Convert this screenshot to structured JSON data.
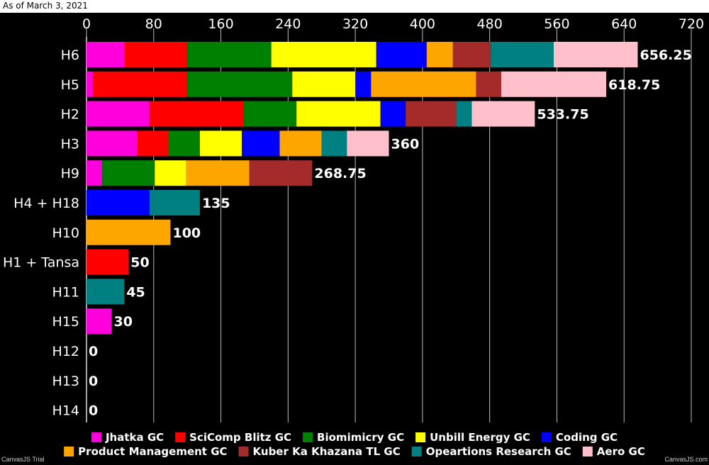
{
  "header": {
    "as_of": "As of March 3, 2021"
  },
  "watermarks": {
    "left": "CanvasJS Trial",
    "right": "CanvasJS.com"
  },
  "chart_data": {
    "type": "bar",
    "orientation": "horizontal",
    "stacked": true,
    "categories": [
      "H6",
      "H5",
      "H2",
      "H3",
      "H9",
      "H4 + H18",
      "H10",
      "H1 + Tansa",
      "H11",
      "H15",
      "H12",
      "H13",
      "H14"
    ],
    "series": [
      {
        "name": "Jhatka GC",
        "color": "#ff00dd",
        "values": [
          45,
          7.5,
          75,
          60,
          18.75,
          0,
          0,
          0,
          0,
          30,
          0,
          0,
          0
        ]
      },
      {
        "name": "SciComp Blitz GC",
        "color": "#ff0000",
        "values": [
          75,
          112.5,
          112.5,
          37.5,
          0,
          0,
          0,
          50,
          0,
          0,
          0,
          0,
          0
        ]
      },
      {
        "name": "Biomimicry GC",
        "color": "#008000",
        "values": [
          100,
          125,
          62.5,
          37.5,
          62.5,
          0,
          0,
          0,
          0,
          0,
          0,
          0,
          0
        ]
      },
      {
        "name": "Unbill Energy GC",
        "color": "#ffff00",
        "values": [
          125,
          75,
          100,
          50,
          37.5,
          0,
          0,
          0,
          0,
          0,
          0,
          0,
          0
        ]
      },
      {
        "name": "Coding GC",
        "color": "#0000ff",
        "values": [
          60,
          18.75,
          30,
          45,
          0,
          75,
          0,
          0,
          0,
          0,
          0,
          0,
          0
        ]
      },
      {
        "name": "Product Management GC",
        "color": "#ffa500",
        "values": [
          31.25,
          125,
          0,
          50,
          75,
          0,
          100,
          0,
          0,
          0,
          0,
          0,
          0
        ]
      },
      {
        "name": "Kuber Ka Khazana TL GC",
        "color": "#a52a2a",
        "values": [
          45,
          30,
          60,
          0,
          75,
          0,
          0,
          0,
          0,
          0,
          0,
          0,
          0
        ]
      },
      {
        "name": "Opeartions Research GC",
        "color": "#008080",
        "values": [
          75,
          0,
          18.75,
          30,
          0,
          60,
          0,
          0,
          45,
          0,
          0,
          0,
          0
        ]
      },
      {
        "name": "Aero GC",
        "color": "#ffc0cb",
        "values": [
          100,
          125,
          75,
          50,
          0,
          0,
          0,
          0,
          0,
          0,
          0,
          0,
          0
        ]
      }
    ],
    "totals": [
      "656.25",
      "618.75",
      "533.75",
      "360",
      "268.75",
      "135",
      "100",
      "50",
      "45",
      "30",
      "0",
      "0",
      "0"
    ],
    "xlim": [
      0,
      720
    ],
    "ticks": [
      "0",
      "80",
      "160",
      "240",
      "320",
      "400",
      "480",
      "560",
      "640",
      "720"
    ],
    "tick_values": [
      0,
      80,
      160,
      240,
      320,
      400,
      480,
      560,
      640,
      720
    ],
    "axis_position": "top",
    "grid": true,
    "legend_placement": "bottom"
  }
}
